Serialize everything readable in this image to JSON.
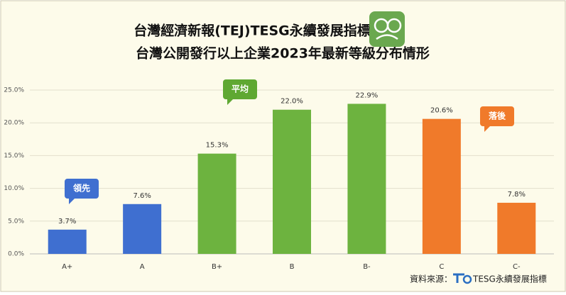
{
  "chart_data": {
    "type": "bar",
    "title": "台灣經濟新報(TEJ)TESG永續發展指標",
    "subtitle": "台灣公開發行以上企業2023年最新等級分布情形",
    "categories": [
      "A+",
      "A",
      "B+",
      "B",
      "B-",
      "C",
      "C-"
    ],
    "values": [
      3.7,
      7.6,
      15.3,
      22.0,
      22.9,
      20.6,
      7.8
    ],
    "value_labels": [
      "3.7%",
      "7.6%",
      "15.3%",
      "22.0%",
      "22.9%",
      "20.6%",
      "7.8%"
    ],
    "colors": [
      "#3f6fd0",
      "#3f6fd0",
      "#6db33f",
      "#6db33f",
      "#6db33f",
      "#f07a2a",
      "#f07a2a"
    ],
    "ylim": [
      0,
      25
    ],
    "yticks": [
      {
        "value": 0,
        "label": "0.0%"
      },
      {
        "value": 5,
        "label": "5.0%"
      },
      {
        "value": 10,
        "label": "10.0%"
      },
      {
        "value": 15,
        "label": "15.0%"
      },
      {
        "value": 20,
        "label": "20.0%"
      },
      {
        "value": 25,
        "label": "25.0%"
      }
    ],
    "grid": true,
    "annotations": [
      {
        "text": "領先",
        "color": "#3f6fd0"
      },
      {
        "text": "平均",
        "color": "#5fa832"
      },
      {
        "text": "落後",
        "color": "#f07a2a"
      }
    ],
    "source": {
      "label": "資料來源：",
      "name": "TESG永續發展指標"
    }
  }
}
